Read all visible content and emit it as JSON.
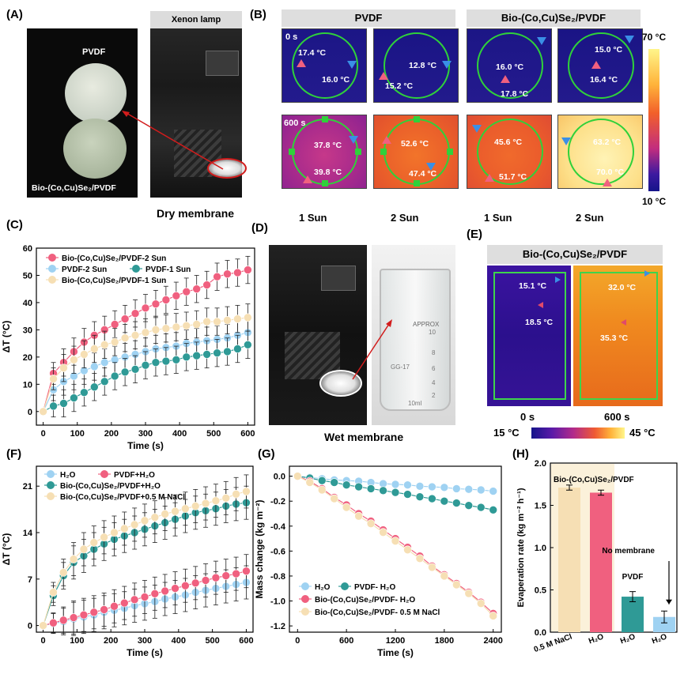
{
  "panels": {
    "A": {
      "label": "(A)",
      "pvdf_label": "PVDF",
      "bio_label": "Bio-(Co,Cu)Se₂/PVDF",
      "lamp_label": "Xenon lamp",
      "caption": "Dry membrane"
    },
    "B": {
      "label": "(B)",
      "group_pvdf": "PVDF",
      "group_bio": "Bio-(Co,Cu)Se₂/PVDF",
      "time_0": "0 s",
      "time_600": "600 s",
      "col_labels": [
        "1 Sun",
        "2 Sun",
        "1 Sun",
        "2 Sun"
      ],
      "scale_max": "70 °C",
      "scale_min": "10 °C",
      "tiles": [
        [
          "17.4 °C",
          "16.0 °C"
        ],
        [
          "12.8 °C",
          "15.2 °C"
        ],
        [
          "16.0 °C",
          "17.8 °C"
        ],
        [
          "15.0 °C",
          "16.4 °C"
        ],
        [
          "37.8 °C",
          "39.8 °C"
        ],
        [
          "52.6 °C",
          "47.4 °C"
        ],
        [
          "45.6 °C",
          "51.7 °C"
        ],
        [
          "63.2 °C",
          "70.0 °C"
        ]
      ]
    },
    "D": {
      "label": "(D)",
      "caption": "Wet membrane",
      "beaker_text": "APPROX",
      "beaker_marks": [
        "10",
        "8",
        "6",
        "4",
        "2",
        "10ml"
      ],
      "beaker_brand": "GG-17"
    },
    "E": {
      "label": "(E)",
      "title": "Bio-(Co,Cu)Se₂/PVDF",
      "t0": [
        "15.1 °C",
        "18.5 °C"
      ],
      "t600": [
        "32.0 °C",
        "35.3 °C"
      ],
      "time_0": "0 s",
      "time_600": "600 s",
      "scale_min": "15 °C",
      "scale_max": "45 °C"
    },
    "H": {
      "label": "(H)"
    },
    "C": {
      "label": "(C)"
    },
    "F": {
      "label": "(F)"
    },
    "G": {
      "label": "(G)"
    }
  },
  "colors": {
    "pink": "#f0607f",
    "lightblue": "#9fd2f2",
    "teal": "#2f9a96",
    "beige": "#f6dfb4",
    "navy": "#1a1f86"
  },
  "chart_data": [
    {
      "id": "C",
      "type": "line",
      "xlabel": "Time (s)",
      "ylabel": "ΔT (°C)",
      "xlim": [
        -20,
        620
      ],
      "ylim": [
        -5,
        60
      ],
      "xticks": [
        0,
        100,
        200,
        300,
        400,
        500,
        600
      ],
      "yticks": [
        0,
        10,
        20,
        30,
        40,
        50,
        60
      ],
      "x": [
        0,
        30,
        60,
        90,
        120,
        150,
        180,
        210,
        240,
        270,
        300,
        330,
        360,
        390,
        420,
        450,
        480,
        510,
        540,
        570,
        600
      ],
      "series": [
        {
          "name": "Bio-(Co,Cu)Se₂/PVDF-2 Sun",
          "color": "#f0607f",
          "values": [
            0,
            14,
            18,
            22,
            25.5,
            28,
            30,
            32,
            34,
            36,
            38,
            39.5,
            41,
            42.5,
            44,
            45,
            46.5,
            49.5,
            50.5,
            51,
            52
          ]
        },
        {
          "name": "PVDF-2 Sun",
          "color": "#9fd2f2",
          "values": [
            0,
            8,
            11,
            13,
            15,
            16.5,
            18,
            19,
            20,
            21,
            22,
            23,
            23.5,
            24,
            25,
            25.5,
            26,
            26.5,
            27,
            28,
            29
          ]
        },
        {
          "name": "PVDF-1 Sun",
          "color": "#2f9a96",
          "values": [
            0,
            2,
            3,
            5,
            7,
            9,
            11,
            13,
            14.5,
            15.5,
            17,
            18,
            18.5,
            19,
            20,
            20.5,
            21,
            21.5,
            22,
            23,
            24.5
          ]
        },
        {
          "name": "Bio-(Co,Cu)Se₂/PVDF-1 Sun",
          "color": "#f6dfb4",
          "values": [
            0,
            12,
            16,
            19,
            21,
            23,
            24.5,
            25.5,
            27,
            28,
            29,
            30,
            30.5,
            31,
            31.5,
            32,
            33,
            33,
            33.5,
            34,
            34.5
          ]
        }
      ],
      "err": [
        0,
        4,
        5,
        5,
        5,
        5,
        5,
        5,
        5,
        5,
        5,
        5,
        5,
        5,
        5,
        5,
        5,
        5,
        5,
        5,
        5
      ]
    },
    {
      "id": "F",
      "type": "line",
      "xlabel": "Time (s)",
      "ylabel": "ΔT (°C)",
      "xlim": [
        -20,
        620
      ],
      "ylim": [
        -1,
        24
      ],
      "xticks": [
        0,
        100,
        200,
        300,
        400,
        500,
        600
      ],
      "yticks": [
        0,
        7,
        14,
        21
      ],
      "x": [
        0,
        30,
        60,
        90,
        120,
        150,
        180,
        210,
        240,
        270,
        300,
        330,
        360,
        390,
        420,
        450,
        480,
        510,
        540,
        570,
        600
      ],
      "series": [
        {
          "name": "H₂O",
          "color": "#9fd2f2",
          "values": [
            0,
            0.3,
            0.6,
            1,
            1.3,
            1.6,
            2,
            2.3,
            2.6,
            3,
            3.3,
            3.6,
            4,
            4.3,
            4.6,
            5,
            5.3,
            5.6,
            5.9,
            6.2,
            6.5
          ]
        },
        {
          "name": "PVDF+H₂O",
          "color": "#f0607f",
          "values": [
            0,
            0.4,
            0.8,
            1.2,
            1.6,
            2,
            2.4,
            2.9,
            3.4,
            3.9,
            4.3,
            4.8,
            5.2,
            5.6,
            6,
            6.4,
            6.8,
            7.2,
            7.5,
            7.8,
            8.2
          ]
        },
        {
          "name": "Bio-(Co,Cu)Se₂/PVDF+H₂O",
          "color": "#2f9a96",
          "values": [
            0,
            4.5,
            7.5,
            9.5,
            10.5,
            11.5,
            12.3,
            13,
            13.5,
            14,
            14.5,
            15,
            15.5,
            16,
            16.5,
            17,
            17.3,
            17.6,
            18,
            18.3,
            18.5
          ]
        },
        {
          "name": "Bio-(Co,Cu)Se₂/PVDF+0.5 M NaCl",
          "color": "#f6dfb4",
          "values": [
            0,
            5,
            8,
            10,
            11.5,
            12.5,
            13.3,
            14,
            14.6,
            15.2,
            15.8,
            16.3,
            16.8,
            17.2,
            17.6,
            18,
            18.4,
            18.8,
            19.2,
            19.8,
            20.2
          ]
        }
      ],
      "err": [
        0,
        1.5,
        2,
        2.5,
        2.5,
        2.5,
        2.5,
        2.5,
        2.5,
        2.5,
        2.5,
        2.5,
        2.5,
        2.5,
        2.5,
        2.5,
        2.5,
        2.5,
        2.5,
        2.5,
        2.5
      ]
    },
    {
      "id": "G",
      "type": "line",
      "xlabel": "Time (s)",
      "ylabel": "Mass change (kg m⁻²)",
      "xlim": [
        -100,
        2500
      ],
      "ylim": [
        -1.25,
        0.08
      ],
      "xticks": [
        0,
        600,
        1200,
        1800,
        2400
      ],
      "yticks": [
        0,
        -0.2,
        -0.4,
        -0.6,
        -0.8,
        -1.0,
        -1.2
      ],
      "x": [
        0,
        150,
        300,
        450,
        600,
        750,
        900,
        1050,
        1200,
        1350,
        1500,
        1650,
        1800,
        1950,
        2100,
        2250,
        2400
      ],
      "series": [
        {
          "name": "H₂O",
          "color": "#9fd2f2",
          "values": [
            0,
            -0.01,
            -0.02,
            -0.03,
            -0.035,
            -0.04,
            -0.05,
            -0.06,
            -0.065,
            -0.07,
            -0.08,
            -0.085,
            -0.09,
            -0.1,
            -0.105,
            -0.11,
            -0.12
          ]
        },
        {
          "name": "PVDF- H₂O",
          "color": "#2f9a96",
          "values": [
            0,
            -0.015,
            -0.035,
            -0.05,
            -0.07,
            -0.085,
            -0.1,
            -0.115,
            -0.13,
            -0.145,
            -0.165,
            -0.18,
            -0.2,
            -0.215,
            -0.235,
            -0.25,
            -0.27
          ]
        },
        {
          "name": "Bio-(Co,Cu)Se₂/PVDF- H₂O",
          "color": "#f0607f",
          "values": [
            0,
            -0.04,
            -0.1,
            -0.17,
            -0.23,
            -0.3,
            -0.36,
            -0.43,
            -0.5,
            -0.57,
            -0.64,
            -0.72,
            -0.79,
            -0.86,
            -0.93,
            -1.01,
            -1.1
          ]
        },
        {
          "name": "Bio-(Co,Cu)Se₂/PVDF- 0.5 M NaCl",
          "color": "#f6dfb4",
          "values": [
            0,
            -0.05,
            -0.11,
            -0.18,
            -0.25,
            -0.32,
            -0.38,
            -0.45,
            -0.52,
            -0.59,
            -0.66,
            -0.73,
            -0.8,
            -0.87,
            -0.94,
            -1.02,
            -1.12
          ]
        }
      ]
    },
    {
      "id": "H",
      "type": "bar",
      "ylabel": "Evaperation rate (kg m⁻² h⁻¹)",
      "ylim": [
        0,
        2.0
      ],
      "yticks": [
        0.0,
        0.5,
        1.0,
        1.5,
        2.0
      ],
      "categories": [
        "0.5 M NaCl",
        "H₂O",
        "H₂O",
        "H₂O"
      ],
      "values": [
        1.71,
        1.65,
        0.42,
        0.18
      ],
      "errors": [
        0.03,
        0.03,
        0.06,
        0.07
      ],
      "colors": [
        "#f6dfb4",
        "#f0607f",
        "#2f9a96",
        "#9fd2f2"
      ],
      "annotations": {
        "group": "Bio-(Co,Cu)Se₂/PVDF",
        "pvdf": "PVDF",
        "none": "No membrane"
      }
    }
  ]
}
